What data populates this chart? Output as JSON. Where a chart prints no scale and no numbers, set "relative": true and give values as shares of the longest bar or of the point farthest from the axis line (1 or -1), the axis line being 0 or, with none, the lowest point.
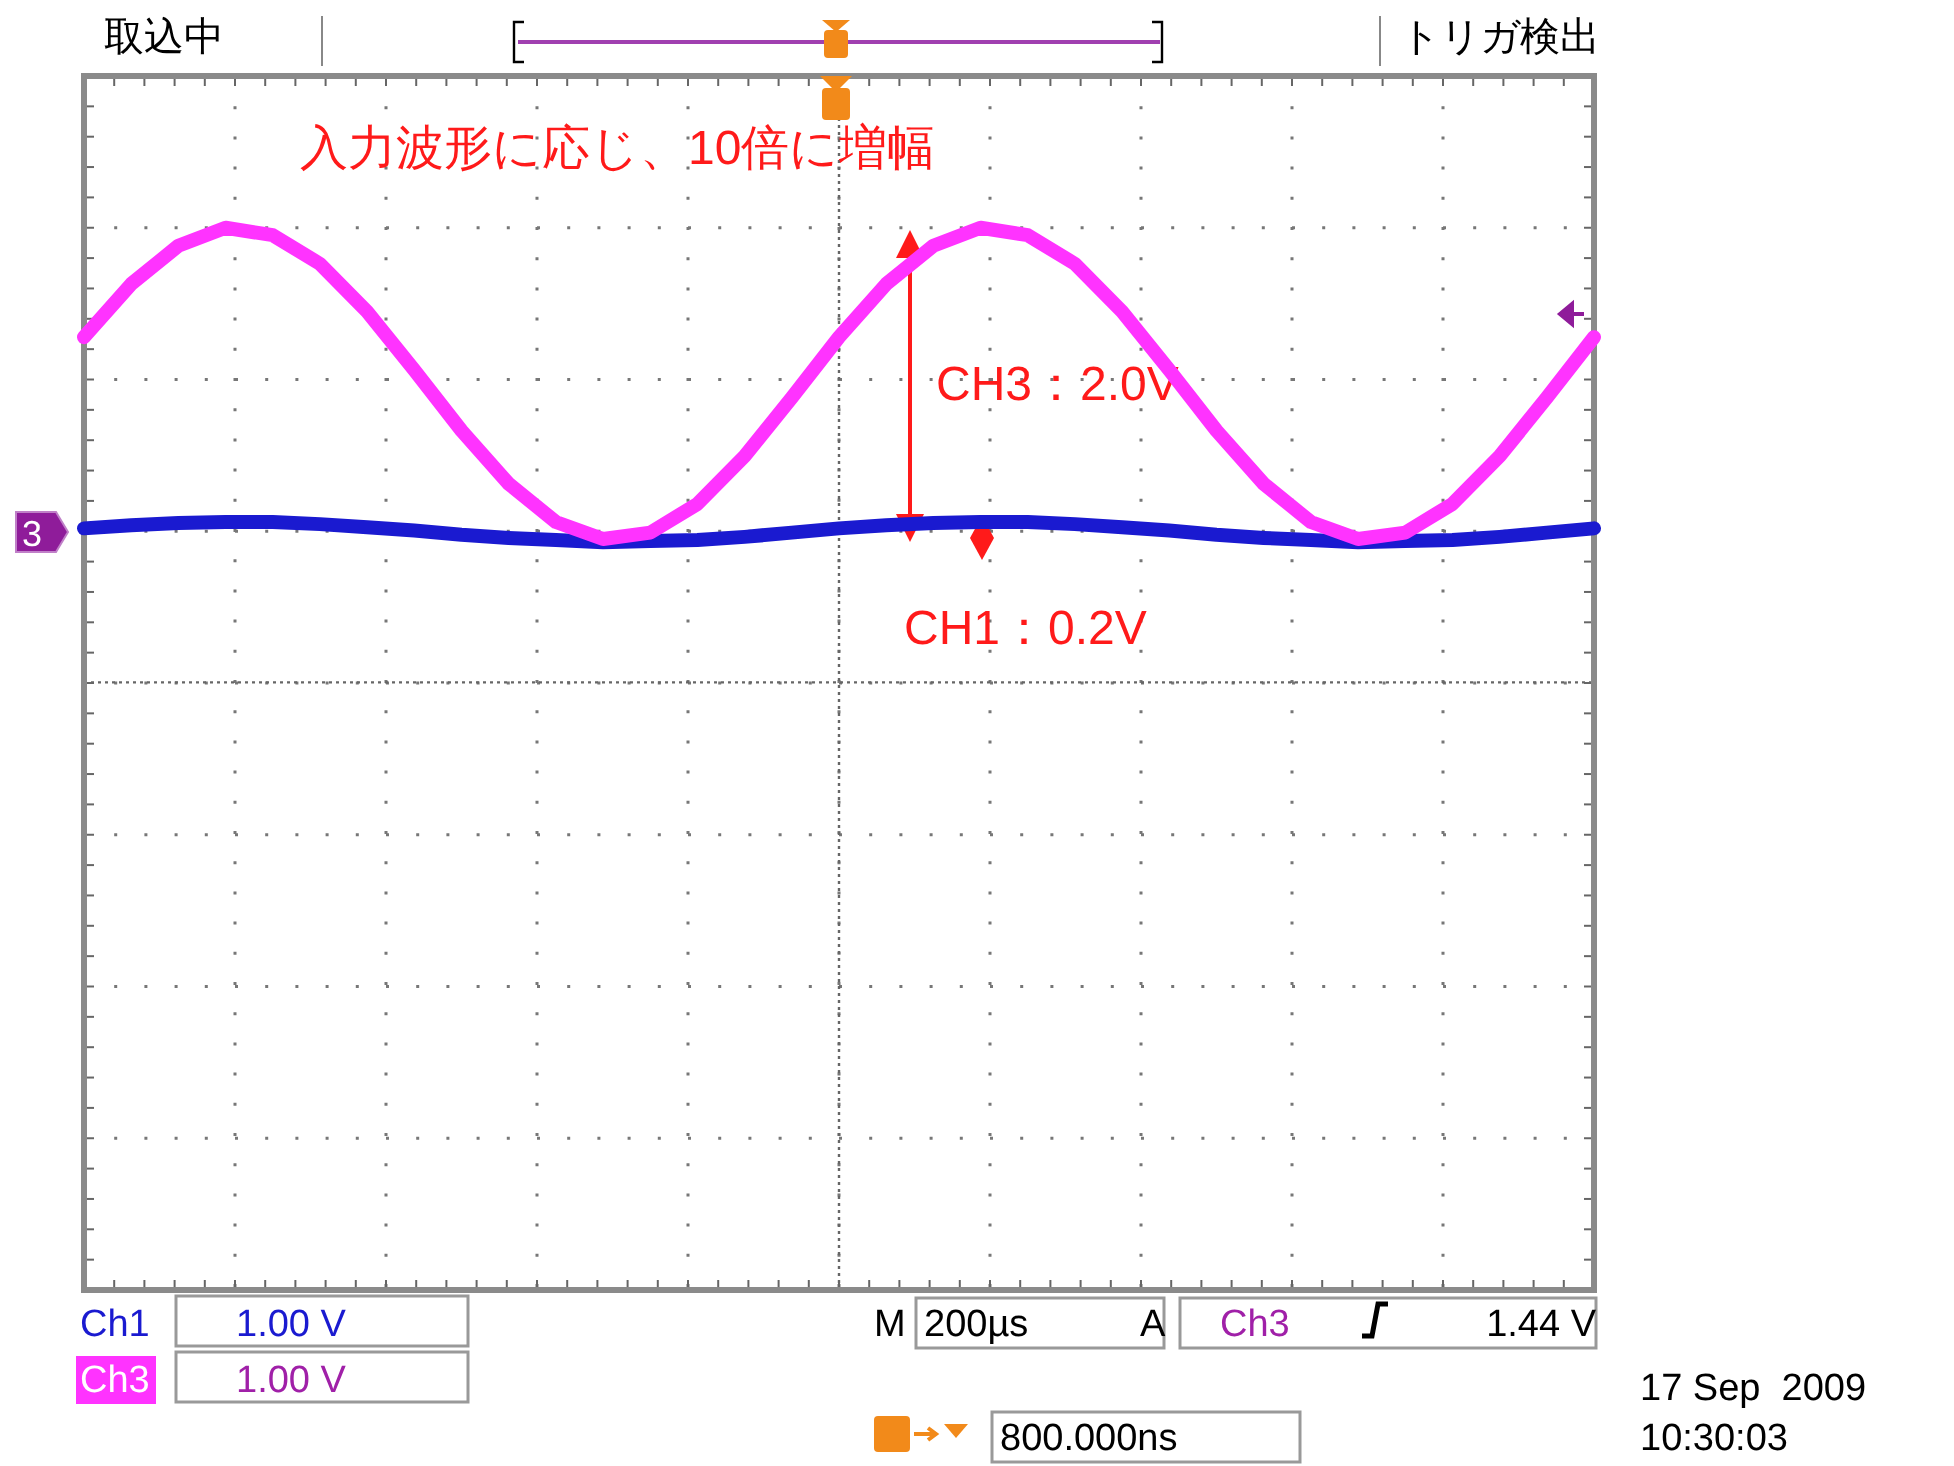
{
  "chart_data": {
    "type": "line",
    "relative": true,
    "grid": true,
    "ref_lines": [
      {
        "axis": "y",
        "value": 0.572,
        "line_style": "dotted",
        "color": "#666666"
      }
    ],
    "categories": [
      null,
      null,
      null,
      null,
      null,
      null,
      null,
      null,
      null,
      null,
      null,
      null,
      null,
      null,
      null,
      null,
      null,
      null,
      null,
      null,
      null,
      null,
      null,
      null,
      null,
      null,
      null,
      null,
      null,
      null,
      null,
      null,
      null
    ],
    "series": [
      {
        "name": "Ch1",
        "color": "#1a1ad0",
        "values": [
          0.717,
          0.72,
          0.722,
          0.723,
          0.723,
          0.721,
          0.718,
          0.715,
          0.711,
          0.708,
          0.706,
          0.704,
          0.705,
          0.706,
          0.709,
          0.713,
          0.717,
          0.72,
          0.722,
          0.723,
          0.723,
          0.721,
          0.718,
          0.715,
          0.711,
          0.708,
          0.706,
          0.704,
          0.705,
          0.706,
          0.709,
          0.713,
          0.717
        ]
      },
      {
        "name": "Ch3",
        "color": "#ff33ff",
        "values": [
          0.897,
          0.947,
          0.983,
          1.0,
          0.993,
          0.966,
          0.921,
          0.866,
          0.809,
          0.759,
          0.723,
          0.707,
          0.713,
          0.74,
          0.785,
          0.84,
          0.897,
          0.947,
          0.983,
          1.0,
          0.993,
          0.966,
          0.921,
          0.866,
          0.809,
          0.759,
          0.723,
          0.707,
          0.713,
          0.74,
          0.785,
          0.84,
          0.897
        ]
      }
    ],
    "annotations": [
      "取込中",
      "トリガ検出",
      "入力波形に応じ、10倍に増幅",
      "CH3：2.0V",
      "CH1：0.2V",
      "1.00 V",
      "1.00 V",
      "M",
      "200µs",
      "A",
      "Ch3",
      "1.44 V",
      "800.000ns",
      "17 Sep  2009",
      "10:30:03",
      "3"
    ]
  }
}
